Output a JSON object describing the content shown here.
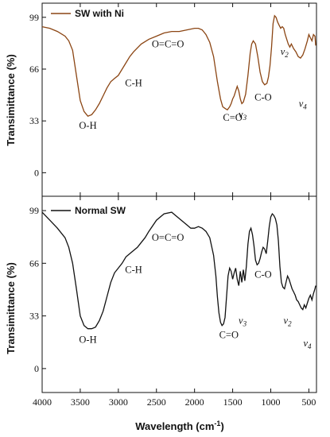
{
  "chart_data": [
    {
      "type": "line",
      "xlabel": "Wavelength (cm⁻¹)",
      "ylabel": "Transimittance (%)",
      "xlim": [
        4000,
        400
      ],
      "ylim": [
        -15,
        108
      ],
      "x_ticks": [
        "4000",
        "3500",
        "3000",
        "2500",
        "2000",
        "1500",
        "1000",
        "500"
      ],
      "y_ticks": [
        "0",
        "33",
        "66",
        "99"
      ],
      "legend": "top-left",
      "series": [
        {
          "name": "SW with Ni",
          "color": "#8B4513",
          "x": [
            4000,
            3900,
            3800,
            3700,
            3650,
            3600,
            3550,
            3500,
            3450,
            3400,
            3350,
            3300,
            3250,
            3200,
            3150,
            3100,
            3050,
            3000,
            2950,
            2900,
            2850,
            2800,
            2700,
            2600,
            2500,
            2400,
            2300,
            2200,
            2100,
            2000,
            1950,
            1900,
            1850,
            1800,
            1750,
            1700,
            1660,
            1630,
            1600,
            1570,
            1540,
            1520,
            1500,
            1480,
            1460,
            1440,
            1420,
            1400,
            1380,
            1360,
            1330,
            1300,
            1270,
            1250,
            1230,
            1200,
            1170,
            1140,
            1110,
            1080,
            1050,
            1030,
            1010,
            990,
            970,
            950,
            930,
            910,
            890,
            870,
            850,
            830,
            810,
            790,
            770,
            750,
            730,
            700,
            670,
            640,
            610,
            580,
            550,
            520,
            500,
            480,
            460,
            440,
            420,
            410
          ],
          "y": [
            93,
            92,
            90,
            87,
            84,
            78,
            62,
            46,
            39,
            36,
            37,
            40,
            44,
            49,
            54,
            58,
            60,
            62,
            66,
            70,
            74,
            77,
            82,
            85,
            87,
            89,
            90,
            90,
            91,
            92,
            92,
            91,
            88,
            83,
            74,
            58,
            47,
            42,
            41,
            40,
            42,
            44,
            47,
            49,
            52,
            55,
            52,
            47,
            44,
            45,
            50,
            62,
            76,
            82,
            84,
            82,
            74,
            64,
            58,
            56,
            57,
            61,
            68,
            80,
            95,
            100,
            99,
            96,
            94,
            92,
            93,
            92,
            88,
            85,
            82,
            80,
            82,
            79,
            77,
            74,
            73,
            75,
            79,
            84,
            88,
            86,
            84,
            88,
            87,
            81
          ]
        }
      ],
      "annotations": [
        {
          "label": "O=C=O",
          "x": 2350,
          "y": 80
        },
        {
          "label": "C-H",
          "x": 2800,
          "y": 55
        },
        {
          "label": "O-H",
          "x": 3400,
          "y": 28
        },
        {
          "label": "C=O",
          "x": 1500,
          "y": 33
        },
        {
          "label": "v",
          "sub": "3",
          "x": 1370,
          "y": 35
        },
        {
          "label": "C-O",
          "x": 1100,
          "y": 46
        },
        {
          "label": "v",
          "sub": "2",
          "x": 820,
          "y": 75
        },
        {
          "label": "v",
          "sub": "4",
          "x": 580,
          "y": 42
        }
      ]
    },
    {
      "type": "line",
      "xlabel": "Wavelength (cm⁻¹)",
      "ylabel": "Transimittance (%)",
      "xlim": [
        4000,
        400
      ],
      "ylim": [
        -15,
        108
      ],
      "x_ticks": [
        "4000",
        "3500",
        "3000",
        "2500",
        "2000",
        "1500",
        "1000",
        "500"
      ],
      "y_ticks": [
        "0",
        "33",
        "66",
        "99"
      ],
      "legend": "top-left",
      "series": [
        {
          "name": "Normal SW",
          "color": "#111111",
          "x": [
            4000,
            3900,
            3800,
            3700,
            3650,
            3600,
            3550,
            3500,
            3450,
            3400,
            3350,
            3300,
            3250,
            3200,
            3150,
            3100,
            3050,
            3000,
            2950,
            2900,
            2850,
            2800,
            2750,
            2700,
            2650,
            2600,
            2500,
            2400,
            2300,
            2200,
            2150,
            2100,
            2050,
            2000,
            1950,
            1900,
            1850,
            1800,
            1750,
            1720,
            1700,
            1680,
            1660,
            1640,
            1620,
            1600,
            1580,
            1560,
            1540,
            1520,
            1500,
            1480,
            1460,
            1440,
            1420,
            1400,
            1380,
            1360,
            1340,
            1320,
            1300,
            1280,
            1260,
            1240,
            1220,
            1200,
            1180,
            1160,
            1140,
            1120,
            1100,
            1080,
            1060,
            1040,
            1020,
            1000,
            980,
            960,
            940,
            920,
            900,
            880,
            860,
            840,
            820,
            800,
            780,
            760,
            740,
            720,
            700,
            680,
            660,
            640,
            620,
            600,
            580,
            560,
            540,
            520,
            500,
            480,
            460,
            440,
            420,
            410
          ],
          "y": [
            98,
            93,
            88,
            82,
            76,
            66,
            50,
            33,
            27,
            25,
            25,
            26,
            30,
            36,
            45,
            54,
            60,
            63,
            66,
            70,
            72,
            74,
            76,
            79,
            82,
            86,
            93,
            97,
            98,
            94,
            92,
            90,
            88,
            88,
            89,
            88,
            86,
            82,
            71,
            58,
            45,
            35,
            29,
            27,
            28,
            32,
            45,
            58,
            63,
            61,
            56,
            60,
            63,
            56,
            52,
            61,
            54,
            62,
            55,
            64,
            78,
            86,
            88,
            84,
            77,
            68,
            65,
            66,
            69,
            73,
            76,
            75,
            72,
            80,
            89,
            95,
            97,
            96,
            94,
            90,
            80,
            64,
            54,
            51,
            50,
            54,
            58,
            56,
            53,
            50,
            48,
            46,
            43,
            42,
            40,
            38,
            37,
            40,
            38,
            41,
            44,
            46,
            43,
            47,
            50,
            52
          ]
        }
      ],
      "annotations": [
        {
          "label": "O=C=O",
          "x": 2350,
          "y": 80
        },
        {
          "label": "C-H",
          "x": 2800,
          "y": 60
        },
        {
          "label": "O-H",
          "x": 3400,
          "y": 16
        },
        {
          "label": "C=O",
          "x": 1550,
          "y": 19
        },
        {
          "label": "v",
          "sub": "3",
          "x": 1370,
          "y": 28
        },
        {
          "label": "C-O",
          "x": 1100,
          "y": 57
        },
        {
          "label": "v",
          "sub": "2",
          "x": 780,
          "y": 28
        },
        {
          "label": "v",
          "sub": "4",
          "x": 520,
          "y": 14
        }
      ]
    }
  ]
}
